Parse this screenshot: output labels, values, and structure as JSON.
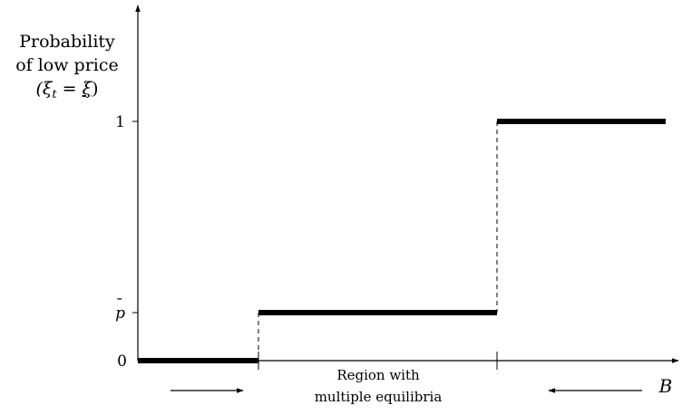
{
  "diagram": {
    "y_axis_label": {
      "line1": "Probability",
      "line2": "of low price",
      "line3": "(ξ",
      "line3_sub": "t",
      "line3_eq": " = ",
      "line3_xi": "ξ",
      "line3_close": ")"
    },
    "x_axis_label": "B",
    "y_ticks": {
      "zero": "0",
      "pbar_p": "p",
      "pbar_bar": "¯",
      "one": "1"
    },
    "region_label": {
      "line1": "Region with",
      "line2": "multiple equilibria"
    },
    "step_levels": [
      "0",
      "p̄",
      "1"
    ],
    "arrows": [
      "right-arrow",
      "left-arrow"
    ]
  }
}
